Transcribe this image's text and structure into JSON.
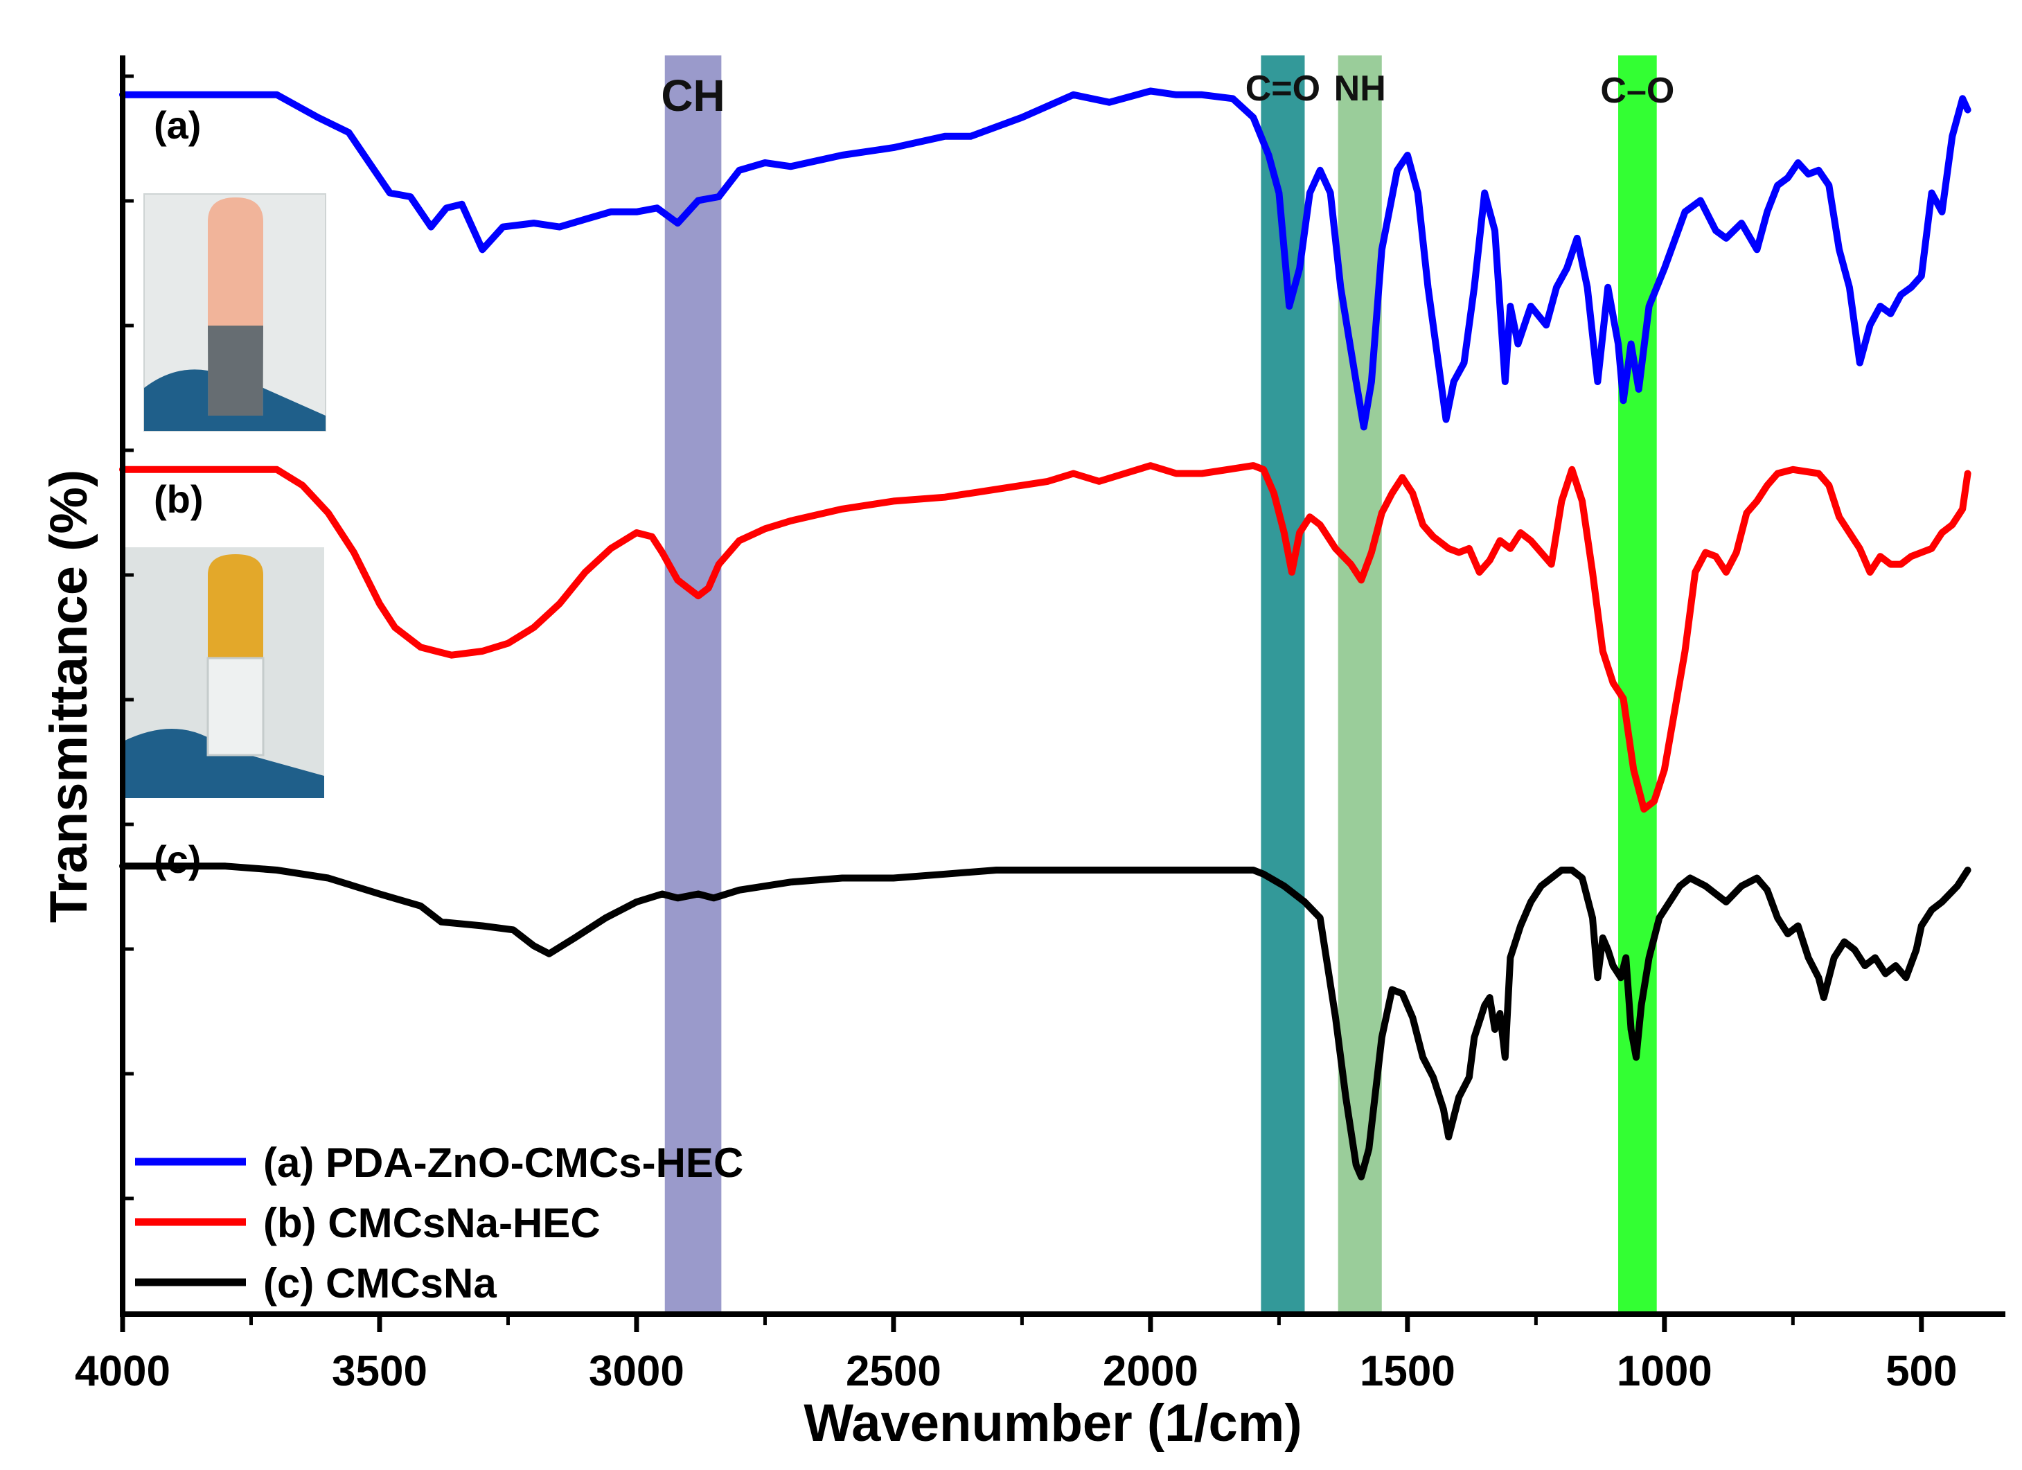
{
  "chart_data": {
    "type": "line",
    "xlabel": "Wavenumber (1/cm)",
    "ylabel": "Transmittance (%)",
    "xlim": [
      4000,
      400
    ],
    "x_reversed": true,
    "xticks": [
      4000,
      3500,
      3000,
      2500,
      2000,
      1500,
      1000,
      500
    ],
    "grid": false,
    "legend_position": "bottom-left",
    "bands": [
      {
        "label": "CH",
        "range": [
          2945,
          2835
        ],
        "color": "#9a9acb"
      },
      {
        "label": "C=O",
        "range": [
          1785,
          1700
        ],
        "color": "#339999"
      },
      {
        "label": "NH",
        "range": [
          1635,
          1550
        ],
        "color": "#9acd9a"
      },
      {
        "label": "C–O",
        "range": [
          1090,
          1015
        ],
        "color": "#33ff33"
      }
    ],
    "series": [
      {
        "name": "(a) PDA-ZnO-CMCs-HEC",
        "label": "(a)",
        "color": "#0000ff",
        "points": [
          [
            4000,
            96
          ],
          [
            3700,
            96
          ],
          [
            3620,
            90
          ],
          [
            3560,
            86
          ],
          [
            3520,
            78
          ],
          [
            3480,
            70
          ],
          [
            3440,
            69
          ],
          [
            3400,
            61
          ],
          [
            3370,
            66
          ],
          [
            3340,
            67
          ],
          [
            3300,
            55
          ],
          [
            3260,
            61
          ],
          [
            3200,
            62
          ],
          [
            3150,
            61
          ],
          [
            3100,
            63
          ],
          [
            3050,
            65
          ],
          [
            3000,
            65
          ],
          [
            2960,
            66
          ],
          [
            2920,
            62
          ],
          [
            2880,
            68
          ],
          [
            2840,
            69
          ],
          [
            2800,
            76
          ],
          [
            2750,
            78
          ],
          [
            2700,
            77
          ],
          [
            2600,
            80
          ],
          [
            2500,
            82
          ],
          [
            2400,
            85
          ],
          [
            2350,
            85
          ],
          [
            2250,
            90
          ],
          [
            2150,
            96
          ],
          [
            2080,
            94
          ],
          [
            2000,
            97
          ],
          [
            1950,
            96
          ],
          [
            1900,
            96
          ],
          [
            1840,
            95
          ],
          [
            1800,
            90
          ],
          [
            1770,
            80
          ],
          [
            1750,
            70
          ],
          [
            1730,
            40
          ],
          [
            1710,
            50
          ],
          [
            1690,
            70
          ],
          [
            1670,
            76
          ],
          [
            1650,
            70
          ],
          [
            1630,
            45
          ],
          [
            1600,
            20
          ],
          [
            1585,
            8
          ],
          [
            1570,
            20
          ],
          [
            1550,
            55
          ],
          [
            1520,
            76
          ],
          [
            1500,
            80
          ],
          [
            1480,
            70
          ],
          [
            1460,
            45
          ],
          [
            1440,
            25
          ],
          [
            1425,
            10
          ],
          [
            1410,
            20
          ],
          [
            1390,
            25
          ],
          [
            1370,
            45
          ],
          [
            1350,
            70
          ],
          [
            1330,
            60
          ],
          [
            1310,
            20
          ],
          [
            1300,
            40
          ],
          [
            1285,
            30
          ],
          [
            1260,
            40
          ],
          [
            1230,
            35
          ],
          [
            1210,
            45
          ],
          [
            1190,
            50
          ],
          [
            1170,
            58
          ],
          [
            1150,
            45
          ],
          [
            1130,
            20
          ],
          [
            1110,
            45
          ],
          [
            1090,
            30
          ],
          [
            1080,
            15
          ],
          [
            1065,
            30
          ],
          [
            1050,
            18
          ],
          [
            1030,
            40
          ],
          [
            1000,
            50
          ],
          [
            960,
            65
          ],
          [
            930,
            68
          ],
          [
            900,
            60
          ],
          [
            880,
            58
          ],
          [
            850,
            62
          ],
          [
            820,
            55
          ],
          [
            800,
            65
          ],
          [
            780,
            72
          ],
          [
            760,
            74
          ],
          [
            740,
            78
          ],
          [
            720,
            75
          ],
          [
            700,
            76
          ],
          [
            680,
            72
          ],
          [
            660,
            55
          ],
          [
            640,
            45
          ],
          [
            620,
            25
          ],
          [
            600,
            35
          ],
          [
            580,
            40
          ],
          [
            560,
            38
          ],
          [
            540,
            43
          ],
          [
            520,
            45
          ],
          [
            500,
            48
          ],
          [
            480,
            70
          ],
          [
            460,
            65
          ],
          [
            440,
            85
          ],
          [
            420,
            95
          ],
          [
            410,
            92
          ]
        ]
      },
      {
        "name": "(b) CMCsNa-HEC",
        "label": "(b)",
        "color": "#ff0000",
        "points": [
          [
            4000,
            96
          ],
          [
            3700,
            96
          ],
          [
            3650,
            92
          ],
          [
            3600,
            85
          ],
          [
            3550,
            75
          ],
          [
            3500,
            62
          ],
          [
            3470,
            56
          ],
          [
            3420,
            51
          ],
          [
            3360,
            49
          ],
          [
            3300,
            50
          ],
          [
            3250,
            52
          ],
          [
            3200,
            56
          ],
          [
            3150,
            62
          ],
          [
            3100,
            70
          ],
          [
            3050,
            76
          ],
          [
            3000,
            80
          ],
          [
            2970,
            79
          ],
          [
            2950,
            75
          ],
          [
            2920,
            68
          ],
          [
            2880,
            64
          ],
          [
            2860,
            66
          ],
          [
            2840,
            72
          ],
          [
            2800,
            78
          ],
          [
            2750,
            81
          ],
          [
            2700,
            83
          ],
          [
            2600,
            86
          ],
          [
            2500,
            88
          ],
          [
            2400,
            89
          ],
          [
            2300,
            91
          ],
          [
            2200,
            93
          ],
          [
            2150,
            95
          ],
          [
            2100,
            93
          ],
          [
            2050,
            95
          ],
          [
            2000,
            97
          ],
          [
            1950,
            95
          ],
          [
            1900,
            95
          ],
          [
            1800,
            97
          ],
          [
            1780,
            96
          ],
          [
            1760,
            90
          ],
          [
            1740,
            80
          ],
          [
            1725,
            70
          ],
          [
            1710,
            80
          ],
          [
            1690,
            84
          ],
          [
            1670,
            82
          ],
          [
            1640,
            76
          ],
          [
            1610,
            72
          ],
          [
            1590,
            68
          ],
          [
            1570,
            75
          ],
          [
            1550,
            85
          ],
          [
            1530,
            90
          ],
          [
            1510,
            94
          ],
          [
            1490,
            90
          ],
          [
            1470,
            82
          ],
          [
            1450,
            79
          ],
          [
            1420,
            76
          ],
          [
            1400,
            75
          ],
          [
            1380,
            76
          ],
          [
            1360,
            70
          ],
          [
            1340,
            73
          ],
          [
            1320,
            78
          ],
          [
            1300,
            76
          ],
          [
            1280,
            80
          ],
          [
            1260,
            78
          ],
          [
            1240,
            75
          ],
          [
            1220,
            72
          ],
          [
            1200,
            88
          ],
          [
            1180,
            96
          ],
          [
            1160,
            88
          ],
          [
            1140,
            70
          ],
          [
            1120,
            50
          ],
          [
            1100,
            42
          ],
          [
            1080,
            38
          ],
          [
            1060,
            20
          ],
          [
            1040,
            10
          ],
          [
            1020,
            12
          ],
          [
            1000,
            20
          ],
          [
            980,
            35
          ],
          [
            960,
            50
          ],
          [
            940,
            70
          ],
          [
            920,
            75
          ],
          [
            900,
            74
          ],
          [
            880,
            70
          ],
          [
            860,
            75
          ],
          [
            840,
            85
          ],
          [
            820,
            88
          ],
          [
            800,
            92
          ],
          [
            780,
            95
          ],
          [
            750,
            96
          ],
          [
            700,
            95
          ],
          [
            680,
            92
          ],
          [
            660,
            84
          ],
          [
            640,
            80
          ],
          [
            620,
            76
          ],
          [
            600,
            70
          ],
          [
            580,
            74
          ],
          [
            560,
            72
          ],
          [
            540,
            72
          ],
          [
            520,
            74
          ],
          [
            500,
            75
          ],
          [
            480,
            76
          ],
          [
            460,
            80
          ],
          [
            440,
            82
          ],
          [
            420,
            86
          ],
          [
            410,
            95
          ]
        ]
      },
      {
        "name": "(c) CMCsNa",
        "label": "(c)",
        "color": "#000000",
        "points": [
          [
            4000,
            93
          ],
          [
            3900,
            93
          ],
          [
            3800,
            93
          ],
          [
            3700,
            92
          ],
          [
            3600,
            90
          ],
          [
            3500,
            86
          ],
          [
            3420,
            83
          ],
          [
            3380,
            79
          ],
          [
            3300,
            78
          ],
          [
            3240,
            77
          ],
          [
            3200,
            73
          ],
          [
            3170,
            71
          ],
          [
            3120,
            75
          ],
          [
            3060,
            80
          ],
          [
            3000,
            84
          ],
          [
            2950,
            86
          ],
          [
            2920,
            85
          ],
          [
            2880,
            86
          ],
          [
            2850,
            85
          ],
          [
            2800,
            87
          ],
          [
            2700,
            89
          ],
          [
            2600,
            90
          ],
          [
            2500,
            90
          ],
          [
            2400,
            91
          ],
          [
            2300,
            92
          ],
          [
            2200,
            92
          ],
          [
            2100,
            92
          ],
          [
            2000,
            92
          ],
          [
            1900,
            92
          ],
          [
            1800,
            92
          ],
          [
            1780,
            91
          ],
          [
            1740,
            88
          ],
          [
            1700,
            84
          ],
          [
            1670,
            80
          ],
          [
            1640,
            55
          ],
          [
            1620,
            35
          ],
          [
            1600,
            18
          ],
          [
            1590,
            15
          ],
          [
            1575,
            22
          ],
          [
            1550,
            50
          ],
          [
            1530,
            62
          ],
          [
            1510,
            61
          ],
          [
            1490,
            55
          ],
          [
            1470,
            45
          ],
          [
            1450,
            40
          ],
          [
            1430,
            32
          ],
          [
            1420,
            25
          ],
          [
            1400,
            35
          ],
          [
            1380,
            40
          ],
          [
            1370,
            50
          ],
          [
            1350,
            58
          ],
          [
            1340,
            60
          ],
          [
            1330,
            52
          ],
          [
            1320,
            56
          ],
          [
            1310,
            45
          ],
          [
            1300,
            70
          ],
          [
            1280,
            78
          ],
          [
            1260,
            84
          ],
          [
            1240,
            88
          ],
          [
            1220,
            90
          ],
          [
            1200,
            92
          ],
          [
            1180,
            92
          ],
          [
            1160,
            90
          ],
          [
            1140,
            80
          ],
          [
            1130,
            65
          ],
          [
            1120,
            75
          ],
          [
            1110,
            72
          ],
          [
            1100,
            68
          ],
          [
            1085,
            65
          ],
          [
            1075,
            70
          ],
          [
            1065,
            52
          ],
          [
            1055,
            45
          ],
          [
            1045,
            58
          ],
          [
            1030,
            70
          ],
          [
            1010,
            80
          ],
          [
            990,
            84
          ],
          [
            970,
            88
          ],
          [
            950,
            90
          ],
          [
            920,
            88
          ],
          [
            900,
            86
          ],
          [
            880,
            84
          ],
          [
            850,
            88
          ],
          [
            820,
            90
          ],
          [
            800,
            87
          ],
          [
            780,
            80
          ],
          [
            760,
            76
          ],
          [
            740,
            78
          ],
          [
            720,
            70
          ],
          [
            700,
            65
          ],
          [
            690,
            60
          ],
          [
            670,
            70
          ],
          [
            650,
            74
          ],
          [
            630,
            72
          ],
          [
            610,
            68
          ],
          [
            590,
            70
          ],
          [
            570,
            66
          ],
          [
            550,
            68
          ],
          [
            530,
            65
          ],
          [
            510,
            72
          ],
          [
            500,
            78
          ],
          [
            480,
            82
          ],
          [
            460,
            84
          ],
          [
            430,
            88
          ],
          [
            410,
            92
          ]
        ]
      }
    ]
  }
}
